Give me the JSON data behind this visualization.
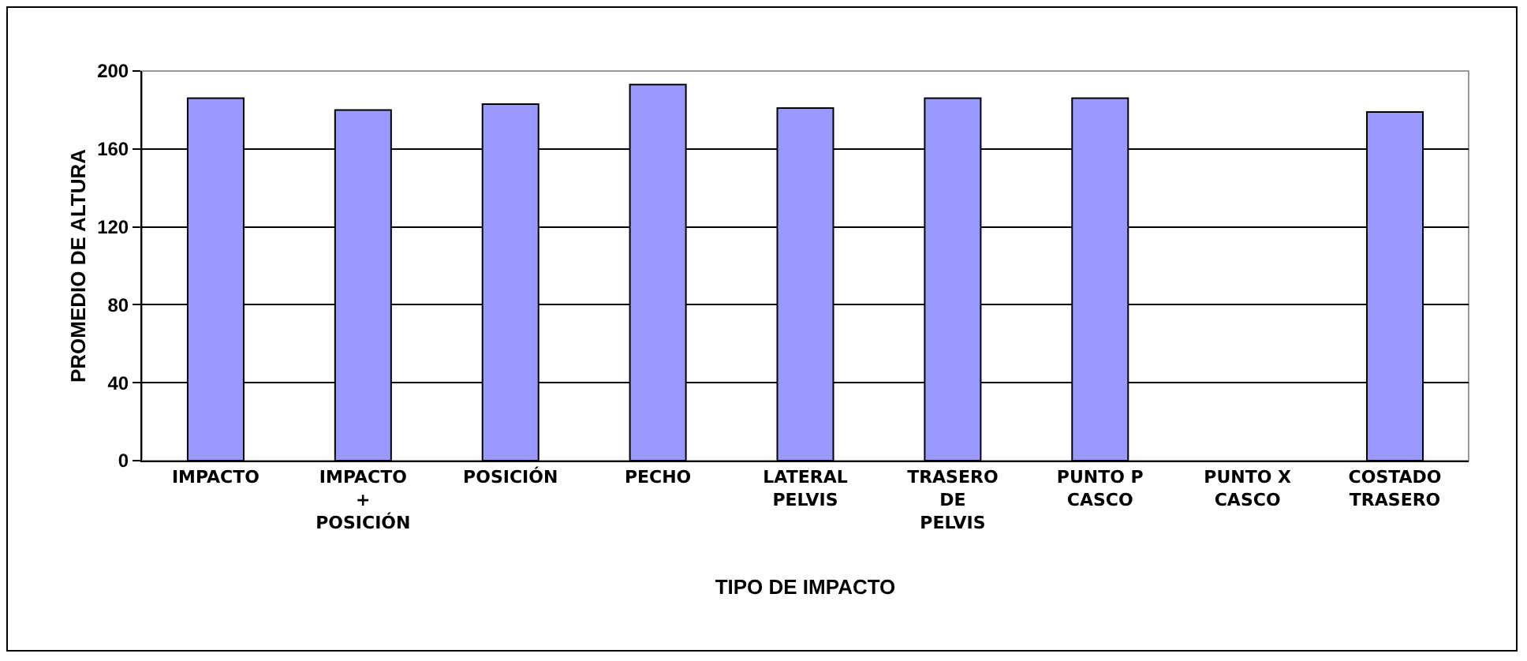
{
  "chart_data": {
    "type": "bar",
    "xlabel": "TIPO DE IMPACTO",
    "ylabel": "PROMEDIO DE ALTURA",
    "categories": [
      "IMPACTO",
      "IMPACTO + POSICIÓN",
      "POSICIÓN",
      "PECHO",
      "LATERAL PELVIS",
      "TRASERO DE PELVIS",
      "PUNTO P CASCO",
      "PUNTO X CASCO",
      "COSTADO TRASERO"
    ],
    "values": [
      186,
      180,
      183,
      193,
      181,
      186,
      186,
      null,
      179
    ],
    "color": "#9999ff",
    "ylim": [
      0,
      200
    ],
    "yticks": [
      0,
      40,
      80,
      120,
      160,
      200
    ],
    "grid": "y",
    "legend": false
  }
}
